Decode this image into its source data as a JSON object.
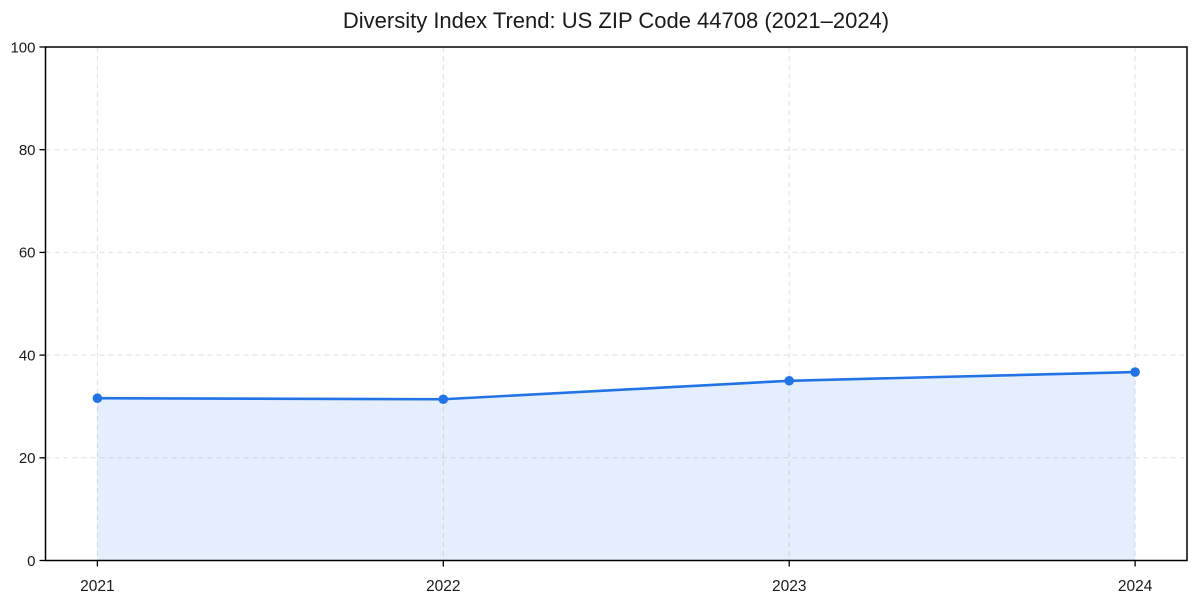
{
  "chart_data": {
    "type": "line",
    "title": "Diversity Index Trend: US ZIP Code 44708 (2021–2024)",
    "x": [
      2021,
      2022,
      2023,
      2024
    ],
    "xtick_labels": [
      "2021",
      "2022",
      "2023",
      "2024"
    ],
    "series": [
      {
        "name": "Diversity Index",
        "values": [
          31.6,
          31.4,
          35.0,
          36.7
        ]
      }
    ],
    "xlabel": "",
    "ylabel": "",
    "ylim": [
      0,
      100
    ],
    "yticks": [
      0,
      20,
      40,
      60,
      80,
      100
    ],
    "x_margin": 0.05,
    "grid": true,
    "grid_style": "dashed",
    "legend_position": "none",
    "area_fill": true,
    "marker": "circle",
    "colors": {
      "line": "#2273E6",
      "marker": "#2273E6",
      "fill": "#2273E6",
      "fill_opacity": 0.12,
      "grid": "#E0E0E0",
      "axis": "#000000",
      "tick_text": "#1A1A1A",
      "background": "#FFFFFF"
    }
  }
}
